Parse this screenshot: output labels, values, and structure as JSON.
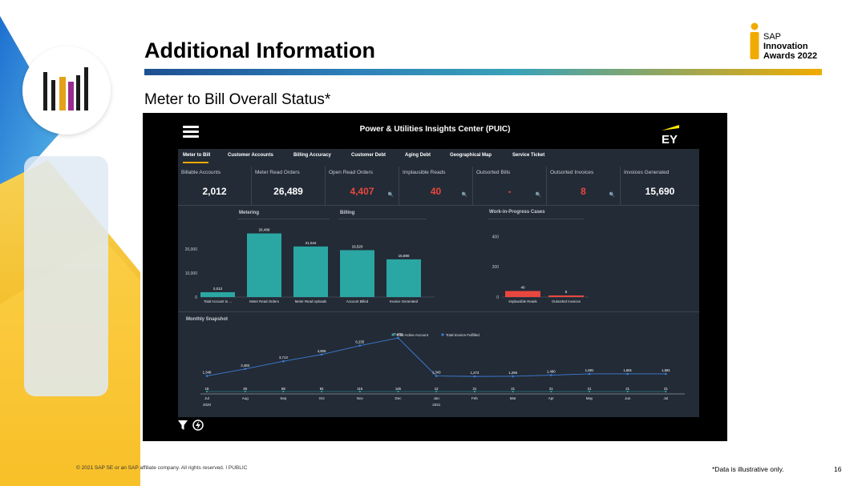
{
  "slide": {
    "title": "Additional Information",
    "subtitle": "Meter to Bill Overall Status*",
    "award": {
      "sap": "SAP",
      "line1": "Innovation",
      "line2": "Awards 2022"
    },
    "footer": "© 2021 SAP SE or an SAP affiliate company. All rights reserved.  ǀ  PUBLIC",
    "note": "*Data is illustrative only.",
    "page_number": "16"
  },
  "app": {
    "title": "Power & Utilities Insights Center (PUIC)",
    "logo": "EY",
    "tabs": [
      "Meter to Bill",
      "Customer Accounts",
      "Billing Accuracy",
      "Customer Debt",
      "Aging Debt",
      "Geographical Map",
      "Service Ticket"
    ],
    "kpis": [
      {
        "label": "Billable Accounts",
        "value": "2,012",
        "alert": false,
        "search": false
      },
      {
        "label": "Meter Read Orders",
        "value": "26,489",
        "alert": false,
        "search": false
      },
      {
        "label": "Open Read Orders",
        "value": "4,407",
        "alert": true,
        "search": true
      },
      {
        "label": "Implausible Reads",
        "value": "40",
        "alert": true,
        "search": true
      },
      {
        "label": "Outsorted Bills",
        "value": "-",
        "alert": true,
        "search": true
      },
      {
        "label": "Outsorted Invoices",
        "value": "8",
        "alert": true,
        "search": true
      },
      {
        "label": "Invoices Generated",
        "value": "15,690",
        "alert": false,
        "search": false
      }
    ],
    "sections": {
      "metering": "Metering",
      "billing": "Billing",
      "wip": "Work-in-Progress Cases",
      "snapshot": "Monthly Snapshot"
    }
  },
  "colors": {
    "teal": "#2aa7a3",
    "red": "#e8473f",
    "blue": "#3b7dd8",
    "panel": "#232b36"
  },
  "chart_data": [
    {
      "type": "bar",
      "title": "Metering / Billing",
      "categories": [
        "Total Account to ...",
        "Meter Read Orders",
        "Meter Read Uploads",
        "Account Billed",
        "Invoice Generated"
      ],
      "values": [
        2012,
        26489,
        21044,
        19520,
        15690
      ],
      "value_labels": [
        "2,012",
        "26,489",
        "21,044",
        "19,520",
        "15,690"
      ],
      "yticks": [
        "20,000",
        "10,000",
        "0"
      ],
      "ylim": [
        0,
        30000
      ]
    },
    {
      "type": "bar",
      "title": "Work-in-Progress Cases",
      "categories": [
        "Implausible Reads",
        "Outsorted Invoices"
      ],
      "values": [
        40,
        8
      ],
      "value_labels": [
        "40",
        "8"
      ],
      "yticks": [
        "400",
        "200",
        "0"
      ],
      "ylim": [
        0,
        450
      ]
    },
    {
      "type": "line",
      "title": "Monthly Snapshot",
      "categories": [
        "Jul",
        "Aug",
        "Sep",
        "Oct",
        "Nov",
        "Dec",
        "Jan",
        "Feb",
        "Mar",
        "Apr",
        "May",
        "Jun",
        "Jul"
      ],
      "year_labels": [
        {
          "index": 0,
          "label": "2020"
        },
        {
          "index": 6,
          "label": "2021"
        }
      ],
      "series": [
        {
          "name": "Total Active Account",
          "values": [
            16,
            45,
            58,
            84,
            115,
            145,
            12,
            21,
            21,
            21,
            21,
            21,
            21
          ],
          "labels": [
            "16",
            "45",
            "58",
            "84",
            "115",
            "145",
            "12",
            "21",
            "21",
            "21",
            "21",
            "21",
            "21"
          ]
        },
        {
          "name": "Total Invoice Fulfilled",
          "values": [
            1348,
            2483,
            3713,
            4806,
            6235,
            7470,
            1343,
            1273,
            1295,
            1480,
            1681,
            1681,
            1681
          ],
          "labels": [
            "1,348",
            "2,483",
            "3,713",
            "4,806",
            "6,235",
            "7,470",
            "1,343",
            "1,273",
            "1,295",
            "1,480",
            "1,681",
            "1,681",
            "1,681"
          ]
        }
      ]
    }
  ]
}
